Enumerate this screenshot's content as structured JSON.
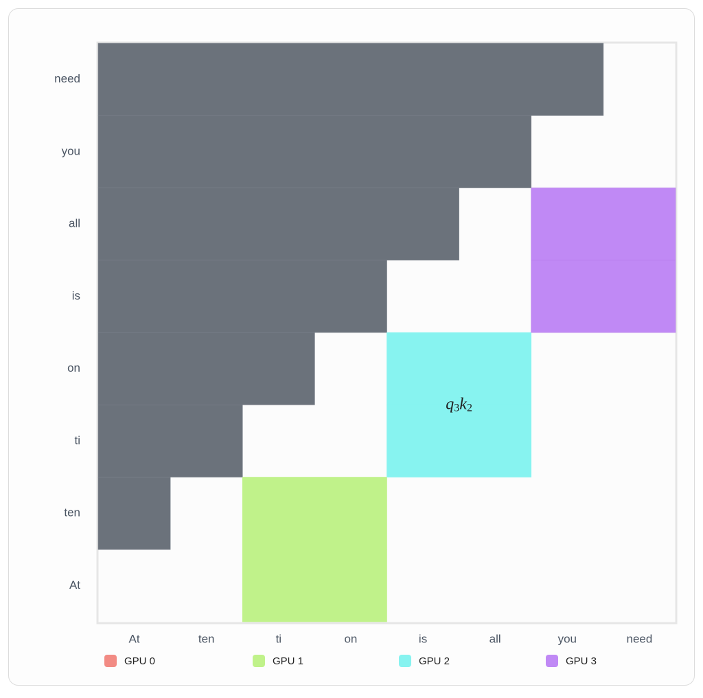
{
  "columns": [
    "At",
    "ten",
    "ti",
    "on",
    "is",
    "all",
    "you",
    "need"
  ],
  "rows": [
    "At",
    "ten",
    "ti",
    "on",
    "is",
    "all",
    "you",
    "need"
  ],
  "block_label": {
    "q": "q",
    "q_sub": "3",
    "k": "k",
    "k_sub": "2"
  },
  "legend": [
    {
      "name": "GPU 0",
      "color": "#f28b84"
    },
    {
      "name": "GPU 1",
      "color": "#c0f28a"
    },
    {
      "name": "GPU 2",
      "color": "#87f3f0"
    },
    {
      "name": "GPU 3",
      "color": "#c089f5"
    }
  ]
}
